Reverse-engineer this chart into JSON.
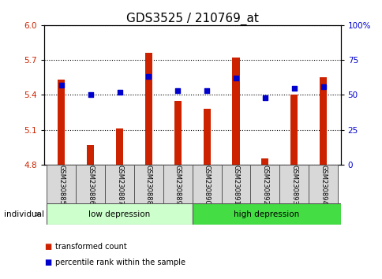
{
  "title": "GDS3525 / 210769_at",
  "samples": [
    "GSM230885",
    "GSM230886",
    "GSM230887",
    "GSM230888",
    "GSM230889",
    "GSM230890",
    "GSM230891",
    "GSM230892",
    "GSM230893",
    "GSM230894"
  ],
  "transformed_counts": [
    5.53,
    4.97,
    5.11,
    5.76,
    5.35,
    5.28,
    5.72,
    4.85,
    5.4,
    5.55
  ],
  "percentile_ranks": [
    57,
    50,
    52,
    63,
    53,
    53,
    62,
    48,
    55,
    56
  ],
  "bar_color": "#cc2200",
  "dot_color": "#0000cc",
  "ylim": [
    4.8,
    6.0
  ],
  "yticks_left": [
    4.8,
    5.1,
    5.4,
    5.7,
    6.0
  ],
  "yticks_right_vals": [
    0,
    25,
    50,
    75,
    100
  ],
  "yticks_right_labels": [
    "0",
    "25",
    "50",
    "75",
    "100%"
  ],
  "base_value": 4.8,
  "legend_items": [
    {
      "label": "transformed count",
      "color": "#cc2200"
    },
    {
      "label": "percentile rank within the sample",
      "color": "#0000cc"
    }
  ],
  "title_fontsize": 11,
  "tick_fontsize": 7.5,
  "bar_width": 0.25,
  "low_dep_color": "#ccffcc",
  "high_dep_color": "#44dd44",
  "sample_box_color": "#d8d8d8"
}
